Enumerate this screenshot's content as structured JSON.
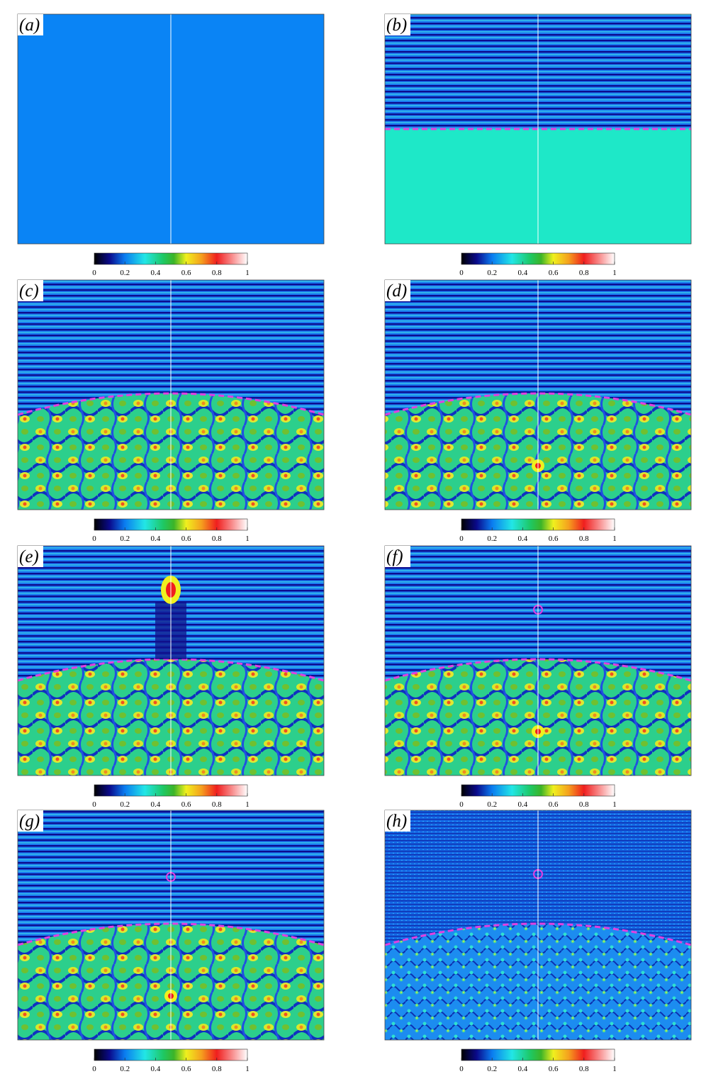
{
  "figure": {
    "panels": [
      {
        "label": "(a)",
        "colorbar": {
          "lim": [
            0,
            1
          ],
          "ticks": [
            0,
            0.2,
            0.4,
            0.6,
            0.8,
            1
          ]
        }
      },
      {
        "label": "(b)",
        "colorbar": {
          "lim": [
            0,
            1
          ],
          "ticks": [
            0,
            0.2,
            0.4,
            0.6,
            0.8,
            1
          ]
        }
      },
      {
        "label": "(c)",
        "colorbar": {
          "lim": [
            0,
            1
          ],
          "ticks": [
            0,
            0.2,
            0.4,
            0.6,
            0.8,
            1
          ]
        }
      },
      {
        "label": "(d)",
        "colorbar": {
          "lim": [
            0,
            1
          ],
          "ticks": [
            0,
            0.2,
            0.4,
            0.6,
            0.8,
            1
          ]
        }
      },
      {
        "label": "(e)",
        "colorbar": {
          "lim": [
            0,
            1
          ],
          "ticks": [
            0,
            0.2,
            0.4,
            0.6,
            0.8,
            1
          ]
        }
      },
      {
        "label": "(f)",
        "colorbar": {
          "lim": [
            0,
            1
          ],
          "ticks": [
            0,
            0.2,
            0.4,
            0.6,
            0.8,
            1
          ]
        }
      },
      {
        "label": "(g)",
        "colorbar": {
          "lim": [
            0,
            1
          ],
          "ticks": [
            0,
            0.2,
            0.4,
            0.6,
            0.8,
            1
          ]
        }
      },
      {
        "label": "(h)",
        "colorbar": {
          "lim": [
            0,
            1
          ],
          "ticks": [
            0,
            0.2,
            0.4,
            0.6,
            0.8,
            1
          ]
        }
      }
    ]
  }
}
